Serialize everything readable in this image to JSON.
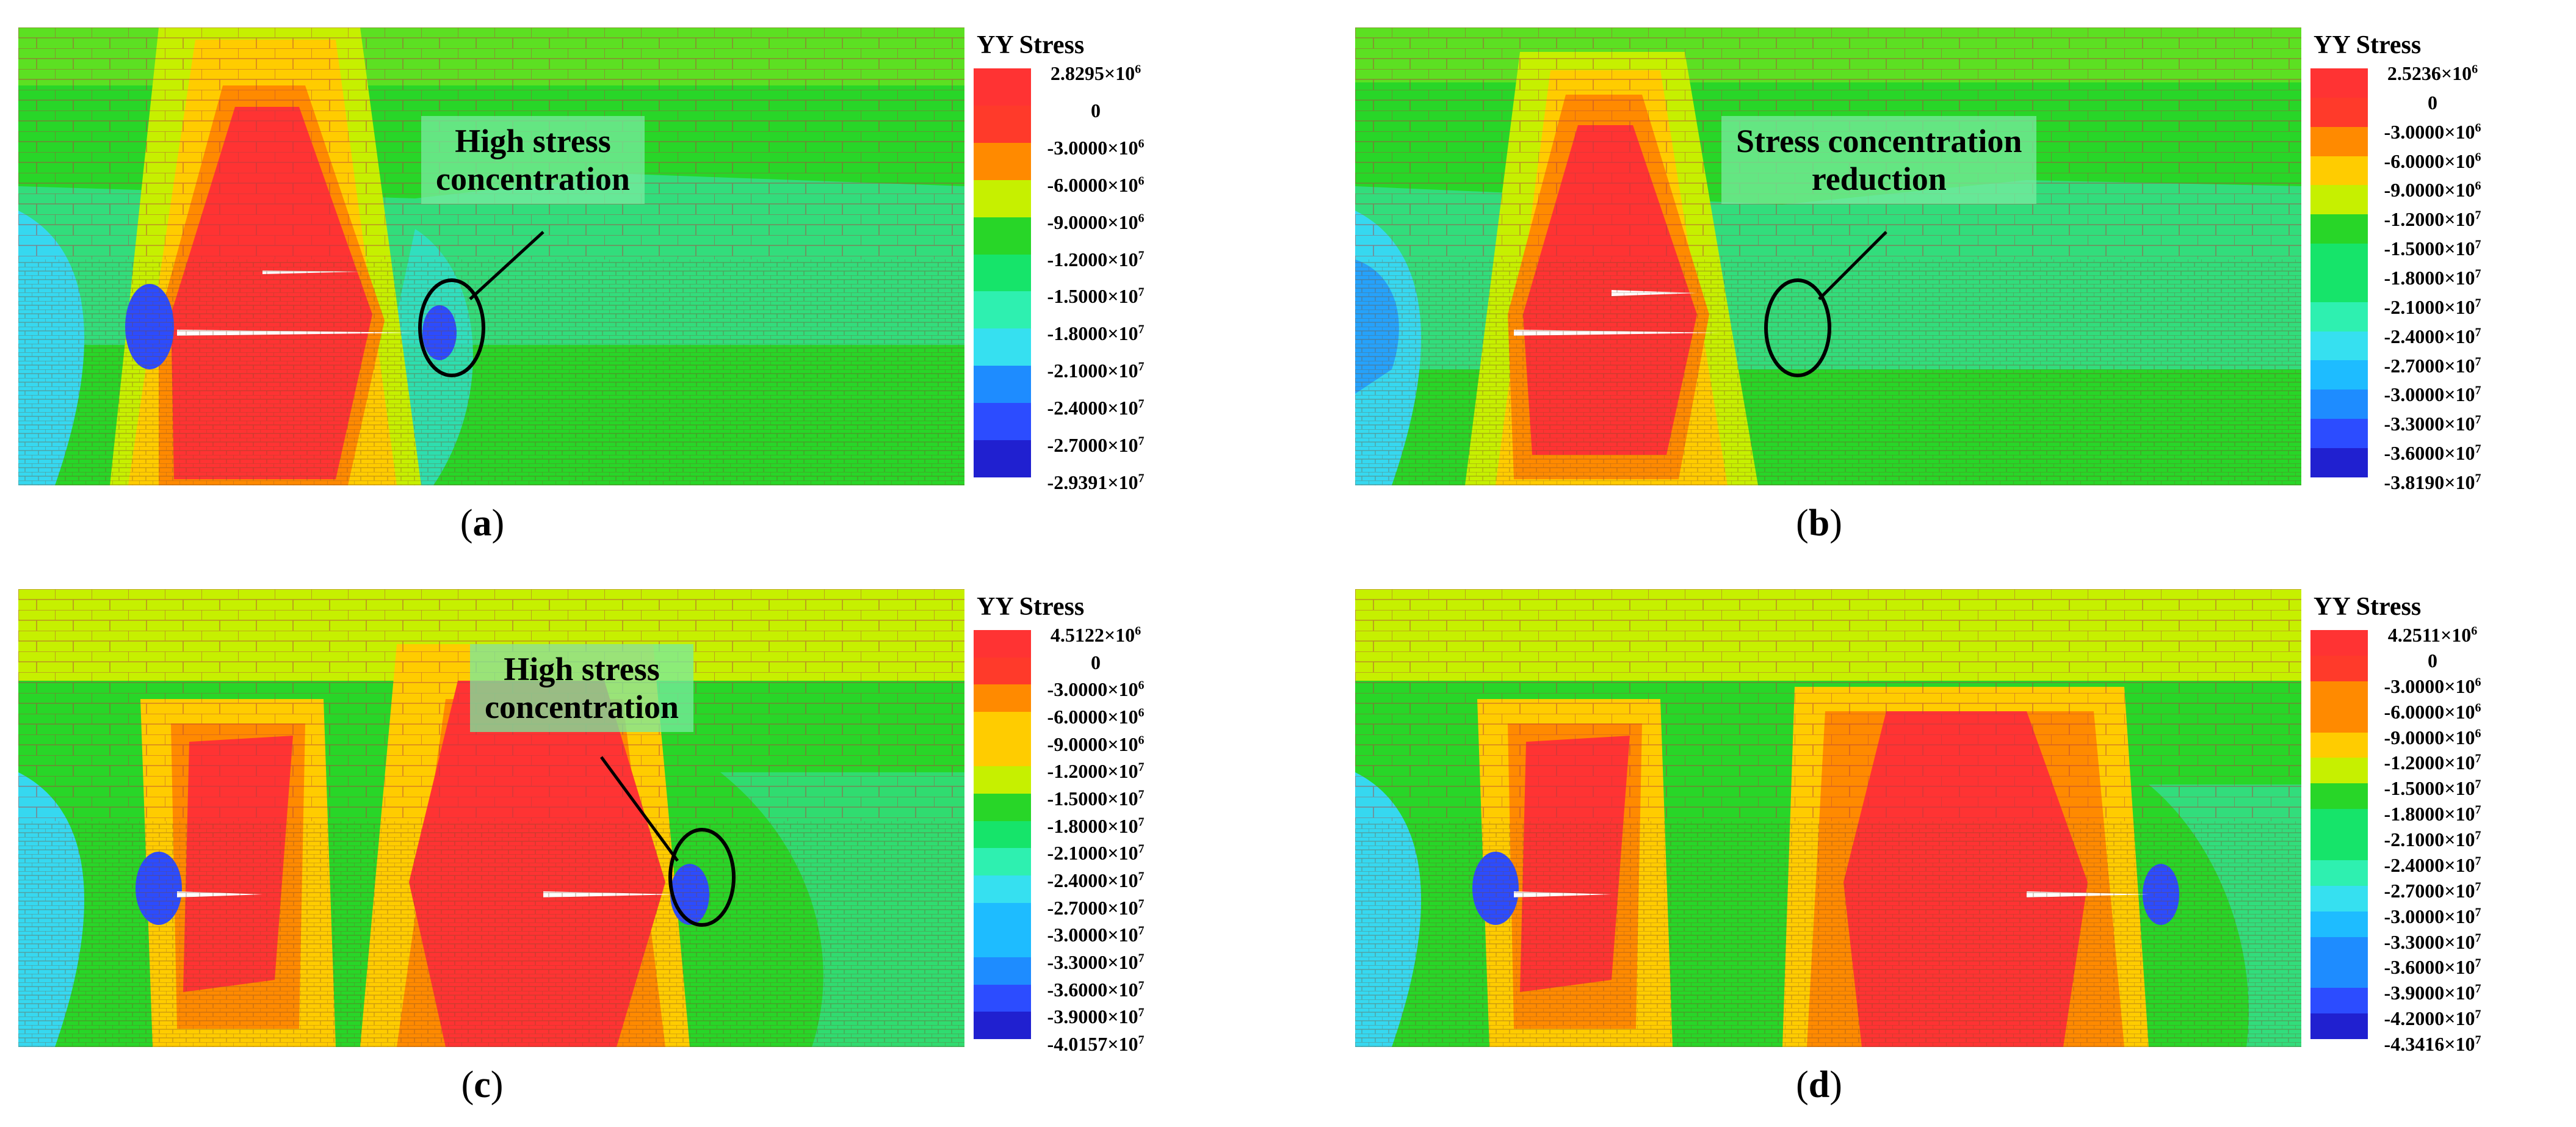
{
  "legend_title": "YY Stress",
  "colors": [
    "#ff3333",
    "#ff3a2a",
    "#ff8a00",
    "#ffcc00",
    "#c6f000",
    "#28d628",
    "#16e46a",
    "#2ef0b0",
    "#36e0f0",
    "#1ebcff",
    "#1e8cff",
    "#2c4cff",
    "#2020d0"
  ],
  "panels": [
    {
      "id": "a",
      "caption_letter": "a",
      "legend": [
        {
          "m": "2.8295",
          "e": "6"
        },
        {
          "m": "0",
          "e": ""
        },
        {
          "m": "-3.0000",
          "e": "6"
        },
        {
          "m": "-6.0000",
          "e": "6"
        },
        {
          "m": "-9.0000",
          "e": "6"
        },
        {
          "m": "-1.2000",
          "e": "7"
        },
        {
          "m": "-1.5000",
          "e": "7"
        },
        {
          "m": "-1.8000",
          "e": "7"
        },
        {
          "m": "-2.1000",
          "e": "7"
        },
        {
          "m": "-2.4000",
          "e": "7"
        },
        {
          "m": "-2.7000",
          "e": "7"
        },
        {
          "m": "-2.9391",
          "e": "7"
        }
      ],
      "annotation": "High stress\nconcentration"
    },
    {
      "id": "b",
      "caption_letter": "b",
      "legend": [
        {
          "m": "2.5236",
          "e": "6"
        },
        {
          "m": "0",
          "e": ""
        },
        {
          "m": "-3.0000",
          "e": "6"
        },
        {
          "m": "-6.0000",
          "e": "6"
        },
        {
          "m": "-9.0000",
          "e": "6"
        },
        {
          "m": "-1.2000",
          "e": "7"
        },
        {
          "m": "-1.5000",
          "e": "7"
        },
        {
          "m": "-1.8000",
          "e": "7"
        },
        {
          "m": "-2.1000",
          "e": "7"
        },
        {
          "m": "-2.4000",
          "e": "7"
        },
        {
          "m": "-2.7000",
          "e": "7"
        },
        {
          "m": "-3.0000",
          "e": "7"
        },
        {
          "m": "-3.3000",
          "e": "7"
        },
        {
          "m": "-3.6000",
          "e": "7"
        },
        {
          "m": "-3.8190",
          "e": "7"
        }
      ],
      "annotation": "Stress concentration\nreduction"
    },
    {
      "id": "c",
      "caption_letter": "c",
      "legend": [
        {
          "m": "4.5122",
          "e": "6"
        },
        {
          "m": "0",
          "e": ""
        },
        {
          "m": "-3.0000",
          "e": "6"
        },
        {
          "m": "-6.0000",
          "e": "6"
        },
        {
          "m": "-9.0000",
          "e": "6"
        },
        {
          "m": "-1.2000",
          "e": "7"
        },
        {
          "m": "-1.5000",
          "e": "7"
        },
        {
          "m": "-1.8000",
          "e": "7"
        },
        {
          "m": "-2.1000",
          "e": "7"
        },
        {
          "m": "-2.4000",
          "e": "7"
        },
        {
          "m": "-2.7000",
          "e": "7"
        },
        {
          "m": "-3.0000",
          "e": "7"
        },
        {
          "m": "-3.3000",
          "e": "7"
        },
        {
          "m": "-3.6000",
          "e": "7"
        },
        {
          "m": "-3.9000",
          "e": "7"
        },
        {
          "m": "-4.0157",
          "e": "7"
        }
      ],
      "annotation": "High stress\nconcentration"
    },
    {
      "id": "d",
      "caption_letter": "d",
      "legend": [
        {
          "m": "4.2511",
          "e": "6"
        },
        {
          "m": "0",
          "e": ""
        },
        {
          "m": "-3.0000",
          "e": "6"
        },
        {
          "m": "-6.0000",
          "e": "6"
        },
        {
          "m": "-9.0000",
          "e": "6"
        },
        {
          "m": "-1.2000",
          "e": "7"
        },
        {
          "m": "-1.5000",
          "e": "7"
        },
        {
          "m": "-1.8000",
          "e": "7"
        },
        {
          "m": "-2.1000",
          "e": "7"
        },
        {
          "m": "-2.4000",
          "e": "7"
        },
        {
          "m": "-2.7000",
          "e": "7"
        },
        {
          "m": "-3.0000",
          "e": "7"
        },
        {
          "m": "-3.3000",
          "e": "7"
        },
        {
          "m": "-3.6000",
          "e": "7"
        },
        {
          "m": "-3.9000",
          "e": "7"
        },
        {
          "m": "-4.2000",
          "e": "7"
        },
        {
          "m": "-4.3416",
          "e": "7"
        }
      ],
      "annotation": ""
    }
  ]
}
